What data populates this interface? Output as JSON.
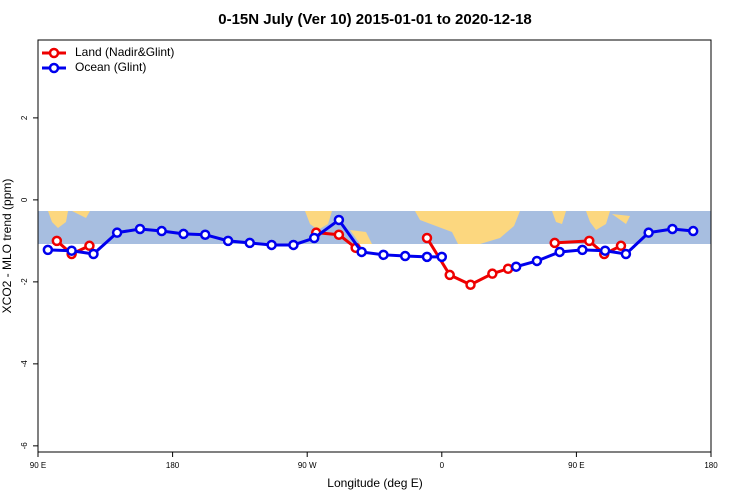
{
  "chart_data": {
    "type": "line",
    "title": "0-15N July (Ver 10)   2015-01-01 to 2020-12-18",
    "x_label": "Longitude (deg E)",
    "y_label": "XCO2 - MLO trend (ppm)",
    "xlim": [
      90,
      540
    ],
    "ylim": [
      -6.15,
      3.9
    ],
    "xticks": [
      {
        "value": 90,
        "label": "90 E"
      },
      180,
      {
        "value": 270,
        "label": "90 W"
      },
      {
        "value": 360,
        "label": "0"
      },
      {
        "value": 450,
        "label": "90 E"
      },
      {
        "value": 540,
        "label": "180"
      }
    ],
    "yticks": [
      2,
      0,
      -2,
      -4,
      -6
    ],
    "legend": "top-left",
    "series": [
      {
        "name": "Land (Nadir&Glint)",
        "color": "#ee0000",
        "x": [
          102.6,
          112.5,
          124.4,
          null,
          276.0,
          291.2,
          302.4,
          null,
          350.1,
          365.3,
          379.2,
          393.8,
          404.3,
          null,
          435.5,
          458.6,
          468.6,
          479.8
        ],
        "values": [
          -1.0,
          -1.32,
          -1.12,
          null,
          -0.8,
          -0.85,
          -1.17,
          null,
          -0.93,
          -1.83,
          -2.07,
          -1.8,
          -1.68,
          null,
          -1.05,
          -1.0,
          -1.32,
          -1.12
        ]
      },
      {
        "name": "Ocean (Glint)",
        "color": "#0000ee",
        "x": [
          96.6,
          112.5,
          127.1,
          142.9,
          158.2,
          172.7,
          187.3,
          201.8,
          217.1,
          231.6,
          246.2,
          260.8,
          274.7,
          291.2,
          306.4,
          321.0,
          335.5,
          350.1,
          360.0,
          null,
          409.7,
          423.6,
          438.8,
          454.0,
          469.2,
          483.1,
          498.3,
          514.2,
          528.1
        ],
        "values": [
          -1.22,
          -1.24,
          -1.32,
          -0.8,
          -0.71,
          -0.76,
          -0.83,
          -0.85,
          -1.0,
          -1.05,
          -1.1,
          -1.1,
          -0.93,
          -0.49,
          -1.27,
          -1.34,
          -1.37,
          -1.39,
          -1.39,
          null,
          -1.63,
          -1.49,
          -1.27,
          -1.22,
          -1.24,
          -1.32,
          -0.8,
          -0.71,
          -0.76
        ]
      }
    ]
  }
}
